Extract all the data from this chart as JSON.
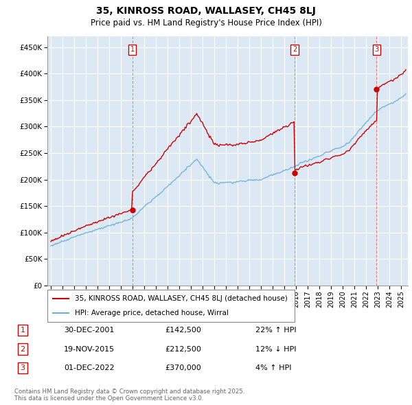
{
  "title": "35, KINROSS ROAD, WALLASEY, CH45 8LJ",
  "subtitle": "Price paid vs. HM Land Registry's House Price Index (HPI)",
  "title_fontsize": 10,
  "subtitle_fontsize": 8.5,
  "ylim": [
    0,
    470000
  ],
  "yticks": [
    0,
    50000,
    100000,
    150000,
    200000,
    250000,
    300000,
    350000,
    400000,
    450000
  ],
  "ytick_labels": [
    "£0",
    "£50K",
    "£100K",
    "£150K",
    "£200K",
    "£250K",
    "£300K",
    "£350K",
    "£400K",
    "£450K"
  ],
  "xlim_start": 1994.7,
  "xlim_end": 2025.6,
  "xticks": [
    1995,
    1996,
    1997,
    1998,
    1999,
    2000,
    2001,
    2002,
    2003,
    2004,
    2005,
    2006,
    2007,
    2008,
    2009,
    2010,
    2011,
    2012,
    2013,
    2014,
    2015,
    2016,
    2017,
    2018,
    2019,
    2020,
    2021,
    2022,
    2023,
    2024,
    2025
  ],
  "background_color": "#ffffff",
  "chart_bg_color": "#dce9f5",
  "grid_color": "#ffffff",
  "hpi_color": "#6baed6",
  "price_color": "#cc0000",
  "sale_dates": [
    2001.99,
    2015.89,
    2022.92
  ],
  "sale_prices": [
    142500,
    212500,
    370000
  ],
  "sale_labels": [
    "1",
    "2",
    "3"
  ],
  "legend_label_price": "35, KINROSS ROAD, WALLASEY, CH45 8LJ (detached house)",
  "legend_label_hpi": "HPI: Average price, detached house, Wirral",
  "table_data": [
    {
      "label": "1",
      "date": "30-DEC-2001",
      "price": "£142,500",
      "change": "22% ↑ HPI"
    },
    {
      "label": "2",
      "date": "19-NOV-2015",
      "price": "£212,500",
      "change": "12% ↓ HPI"
    },
    {
      "label": "3",
      "date": "01-DEC-2022",
      "price": "£370,000",
      "change": "4% ↑ HPI"
    }
  ],
  "footer": "Contains HM Land Registry data © Crown copyright and database right 2025.\nThis data is licensed under the Open Government Licence v3.0."
}
